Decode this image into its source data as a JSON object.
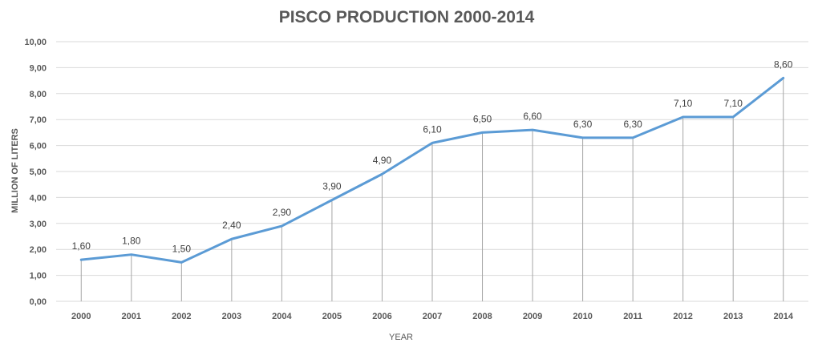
{
  "chart_data": {
    "type": "line",
    "title": "PISCO PRODUCTION 2000-2014",
    "xlabel": "YEAR",
    "ylabel": "MILLION OF LITERS",
    "categories": [
      "2000",
      "2001",
      "2002",
      "2003",
      "2004",
      "2005",
      "2006",
      "2007",
      "2008",
      "2009",
      "2010",
      "2011",
      "2012",
      "2013",
      "2014"
    ],
    "values": [
      1.6,
      1.8,
      1.5,
      2.4,
      2.9,
      3.9,
      4.9,
      6.1,
      6.5,
      6.6,
      6.3,
      6.3,
      7.1,
      7.1,
      8.6
    ],
    "value_labels": [
      "1,60",
      "1,80",
      "1,50",
      "2,40",
      "2,90",
      "3,90",
      "4,90",
      "6,10",
      "6,50",
      "6,60",
      "6,30",
      "6,30",
      "7,10",
      "7,10",
      "8,60"
    ],
    "ylim": [
      0,
      10
    ],
    "yticks": [
      "0,00",
      "1,00",
      "2,00",
      "3,00",
      "4,00",
      "5,00",
      "6,00",
      "7,00",
      "8,00",
      "9,00",
      "10,00"
    ],
    "grid": true,
    "drop_lines": true,
    "legend": "none",
    "colors": {
      "line": "#5b9bd5",
      "grid": "#d9d9d9",
      "drop_line": "#a6a6a6",
      "text": "#595959"
    }
  }
}
